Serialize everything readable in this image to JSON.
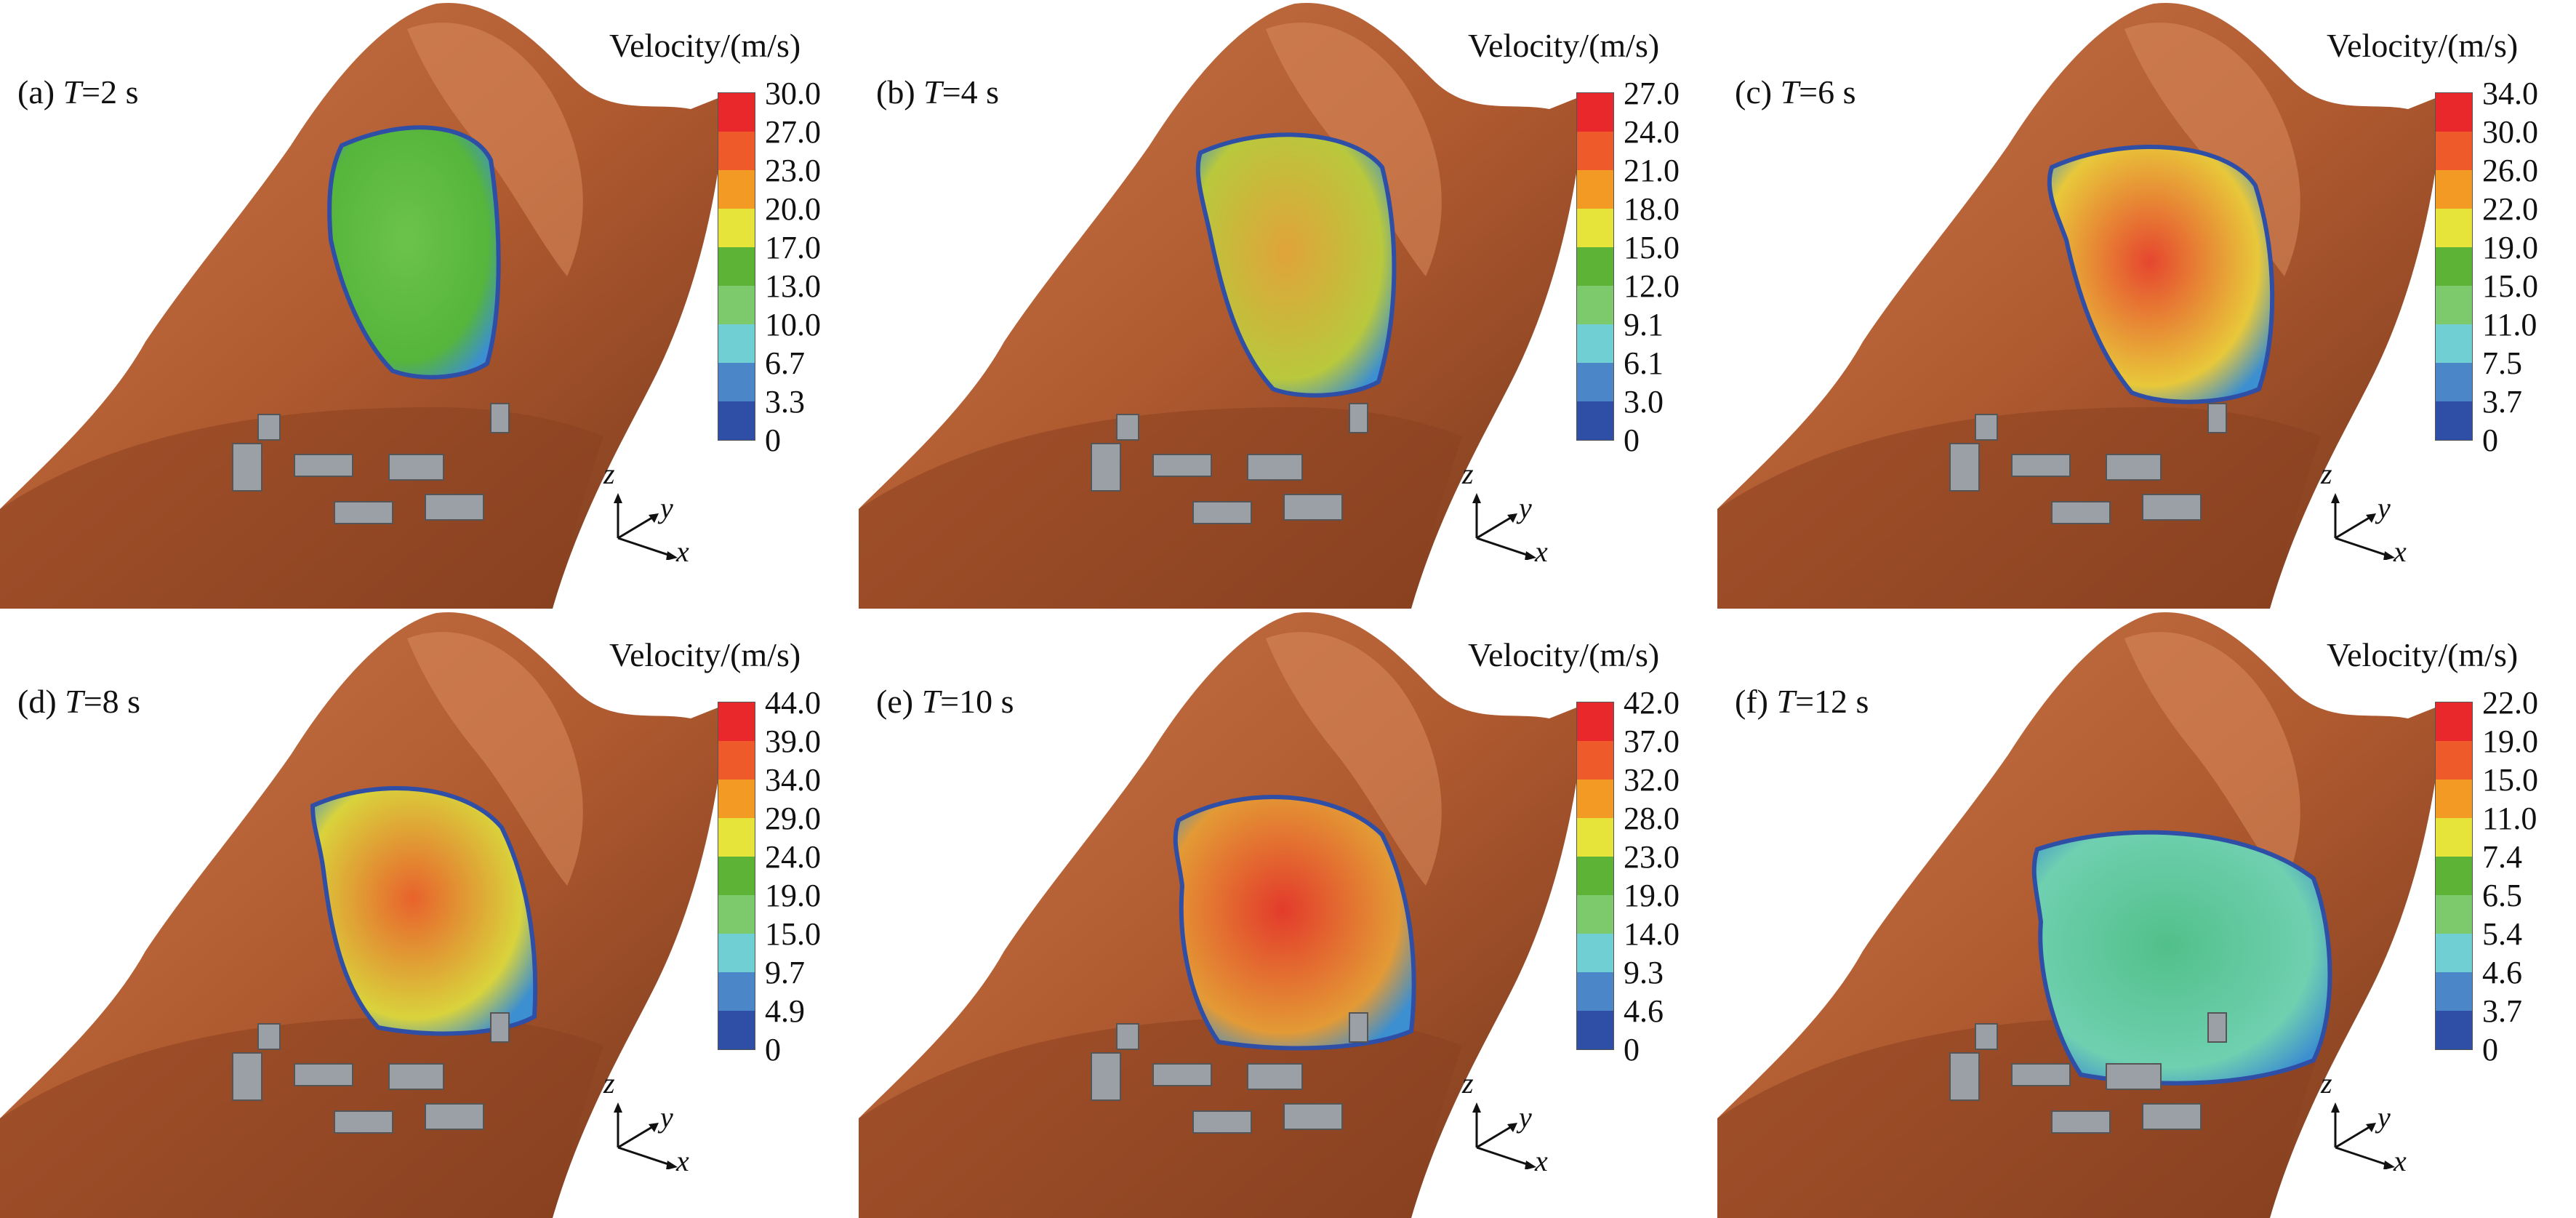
{
  "legend_colors": [
    "#e8282a",
    "#ef5a2a",
    "#f39a25",
    "#e6e33a",
    "#5cb335",
    "#7cca6c",
    "#6fcfd2",
    "#4a86c8",
    "#2f4ea6"
  ],
  "terrain_color": "#b05a30",
  "building_color": "#9aa0a6",
  "panels": [
    {
      "label_prefix": "(a) ",
      "label_var": "T",
      "label_suffix": "=2 s",
      "legend_title": "Velocity/(m/s)",
      "ticks": [
        "30.0",
        "27.0",
        "23.0",
        "20.0",
        "17.0",
        "13.0",
        "10.0",
        "6.7",
        "3.3",
        "0"
      ],
      "axis_x": "x",
      "axis_y": "y",
      "axis_z": "z",
      "flow_colors": [
        "#6cc34b",
        "#56b53c",
        "#3c8fd0"
      ]
    },
    {
      "label_prefix": "(b) ",
      "label_var": "T",
      "label_suffix": "=4 s",
      "legend_title": "Velocity/(m/s)",
      "ticks": [
        "27.0",
        "24.0",
        "21.0",
        "18.0",
        "15.0",
        "12.0",
        "9.1",
        "6.1",
        "3.0",
        "0"
      ],
      "axis_x": "x",
      "axis_y": "y",
      "axis_z": "z",
      "flow_colors": [
        "#e0a33a",
        "#b9c83c",
        "#3c8fd0"
      ]
    },
    {
      "label_prefix": "(c) ",
      "label_var": "T",
      "label_suffix": "=6 s",
      "legend_title": "Velocity/(m/s)",
      "ticks": [
        "34.0",
        "30.0",
        "26.0",
        "22.0",
        "19.0",
        "15.0",
        "11.0",
        "7.5",
        "3.7",
        "0"
      ],
      "axis_x": "x",
      "axis_y": "y",
      "axis_z": "z",
      "flow_colors": [
        "#e6462f",
        "#e8c83a",
        "#3c8fd0"
      ]
    },
    {
      "label_prefix": "(d) ",
      "label_var": "T",
      "label_suffix": "=8 s",
      "legend_title": "Velocity/(m/s)",
      "ticks": [
        "44.0",
        "39.0",
        "34.0",
        "29.0",
        "24.0",
        "19.0",
        "15.0",
        "9.7",
        "4.9",
        "0"
      ],
      "axis_x": "x",
      "axis_y": "y",
      "axis_z": "z",
      "flow_colors": [
        "#e8622c",
        "#d9d33c",
        "#3c8fd0"
      ]
    },
    {
      "label_prefix": "(e) ",
      "label_var": "T",
      "label_suffix": "=10 s",
      "legend_title": "Velocity/(m/s)",
      "ticks": [
        "42.0",
        "37.0",
        "32.0",
        "28.0",
        "23.0",
        "19.0",
        "14.0",
        "9.3",
        "4.6",
        "0"
      ],
      "axis_x": "x",
      "axis_y": "y",
      "axis_z": "z",
      "flow_colors": [
        "#e33b2b",
        "#e39a35",
        "#3c8fd0"
      ]
    },
    {
      "label_prefix": "(f) ",
      "label_var": "T",
      "label_suffix": "=12 s",
      "legend_title": "Velocity/(m/s)",
      "ticks": [
        "22.0",
        "19.0",
        "15.0",
        "11.0",
        "7.4",
        "6.5",
        "5.4",
        "4.6",
        "3.7",
        "0"
      ],
      "axis_x": "x",
      "axis_y": "y",
      "axis_z": "z",
      "flow_colors": [
        "#52c08a",
        "#6fd0b0",
        "#3c8fd0"
      ]
    }
  ]
}
